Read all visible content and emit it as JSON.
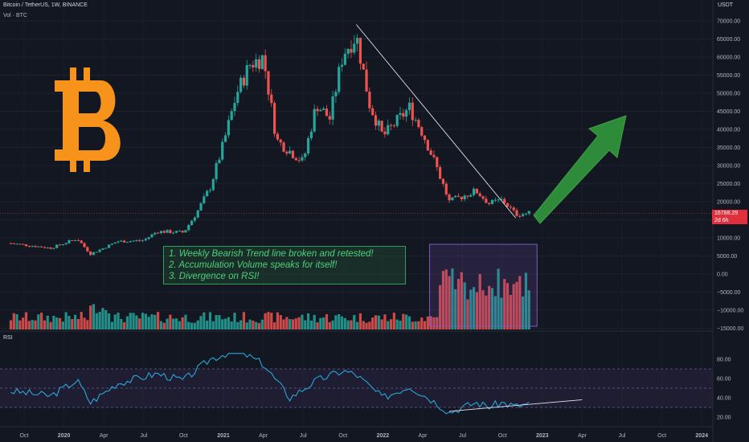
{
  "header": {
    "symbol": "Bitcoin / TetherUS, 1W, BINANCE",
    "volume": "Vol · BTC",
    "currency": "USDT",
    "rsi_label": "RSI"
  },
  "last_price": {
    "value": "16788.29",
    "countdown": "2d 6h",
    "color": "#e0303d"
  },
  "annotation": {
    "lines": [
      "1. Weekly Bearish Trend line broken and retested!",
      "2. Accumulation Volume speaks for itself!",
      "3. Divergence on RSI!"
    ]
  },
  "colors": {
    "up": "#26a69a",
    "down": "#ef5350",
    "logo": "#f7931a",
    "arrow": "#2e8b3a",
    "rsi": "#2aa7d8"
  },
  "icons": {
    "logo": "bitcoin-logo-icon",
    "arrow": "up-arrow-icon"
  },
  "chart_data": {
    "type": "candlestick",
    "title": "Bitcoin / TetherUS, 1W, BINANCE",
    "price_axis": {
      "ticks": [
        "70000.00",
        "65000.00",
        "60000.00",
        "55000.00",
        "50000.00",
        "45000.00",
        "40000.00",
        "35000.00",
        "30000.00",
        "25000.00",
        "20000.00",
        "15000.00",
        "10000.00",
        "5000.00",
        "0.00",
        "−5000.00",
        "−10000.00",
        "−15000.00"
      ],
      "ylim": [
        -15000,
        70000
      ]
    },
    "rsi_axis": {
      "ticks": [
        "80.00",
        "60.00",
        "40.00",
        "20.00"
      ],
      "ylim": [
        20,
        80
      ],
      "bands": [
        30,
        50,
        70
      ]
    },
    "time_axis": {
      "ticks": [
        "Oct",
        "2020",
        "Apr",
        "Jul",
        "Oct",
        "2021",
        "Apr",
        "Jul",
        "Oct",
        "2022",
        "Apr",
        "Jul",
        "Oct",
        "2023",
        "Apr",
        "Jul",
        "Oct",
        "2024"
      ]
    },
    "price_keypoints": [
      [
        "2019-09",
        8500
      ],
      [
        "2019-12",
        7200
      ],
      [
        "2020-02",
        9800
      ],
      [
        "2020-03",
        5500
      ],
      [
        "2020-05",
        9000
      ],
      [
        "2020-07",
        9300
      ],
      [
        "2020-08",
        11800
      ],
      [
        "2020-10",
        11500
      ],
      [
        "2020-11",
        17000
      ],
      [
        "2020-12",
        24000
      ],
      [
        "2021-01",
        36000
      ],
      [
        "2021-02",
        50000
      ],
      [
        "2021-03",
        58000
      ],
      [
        "2021-04",
        60000
      ],
      [
        "2021-05",
        37000
      ],
      [
        "2021-06",
        34000
      ],
      [
        "2021-07",
        31000
      ],
      [
        "2021-08",
        47000
      ],
      [
        "2021-09",
        43000
      ],
      [
        "2021-10",
        61000
      ],
      [
        "2021-11",
        66000
      ],
      [
        "2021-12",
        47000
      ],
      [
        "2022-01",
        38000
      ],
      [
        "2022-03",
        46000
      ],
      [
        "2022-04",
        39000
      ],
      [
        "2022-05",
        30000
      ],
      [
        "2022-06",
        20000
      ],
      [
        "2022-08",
        23000
      ],
      [
        "2022-09",
        19500
      ],
      [
        "2022-10",
        20500
      ],
      [
        "2022-11",
        16500
      ],
      [
        "2022-12",
        16788
      ]
    ],
    "rsi_keypoints": [
      [
        "2019-09",
        47
      ],
      [
        "2019-12",
        42
      ],
      [
        "2020-02",
        58
      ],
      [
        "2020-03",
        35
      ],
      [
        "2020-05",
        55
      ],
      [
        "2020-08",
        65
      ],
      [
        "2020-10",
        58
      ],
      [
        "2020-12",
        80
      ],
      [
        "2021-02",
        90
      ],
      [
        "2021-04",
        75
      ],
      [
        "2021-06",
        40
      ],
      [
        "2021-08",
        58
      ],
      [
        "2021-10",
        68
      ],
      [
        "2021-11",
        64
      ],
      [
        "2022-01",
        40
      ],
      [
        "2022-03",
        52
      ],
      [
        "2022-05",
        35
      ],
      [
        "2022-06",
        25
      ],
      [
        "2022-08",
        35
      ],
      [
        "2022-09",
        31
      ],
      [
        "2022-10",
        35
      ],
      [
        "2022-11",
        31
      ],
      [
        "2022-12",
        34
      ]
    ],
    "drawings": {
      "trend_line": {
        "from": [
          "2021-11",
          69000
        ],
        "to": [
          "2022-11",
          15500
        ],
        "label": "Weekly Bearish Trend line"
      },
      "rsi_divergence_line": {
        "from": [
          "2022-06",
          26
        ],
        "to": [
          "2023-04",
          38
        ]
      },
      "volume_box": {
        "from": "2022-05",
        "to": "2022-12"
      }
    }
  }
}
